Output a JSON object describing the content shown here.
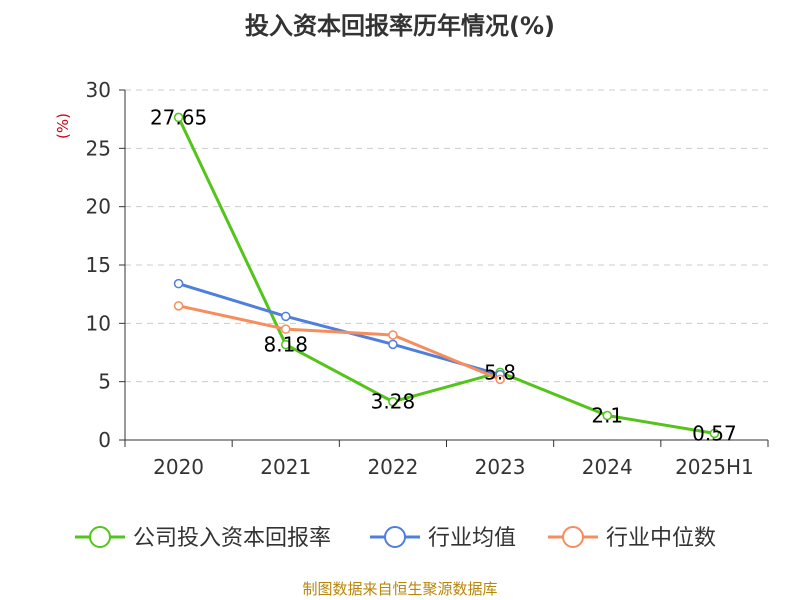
{
  "chart_data": {
    "type": "line",
    "title": "投入资本回报率历年情况(%)",
    "ylabel": "(%)",
    "categories": [
      "2020",
      "2021",
      "2022",
      "2023",
      "2024",
      "2025H1"
    ],
    "yticks": [
      "0",
      "5",
      "10",
      "15",
      "20",
      "25",
      "30"
    ],
    "ylim": [
      0,
      30
    ],
    "grid": true,
    "legend_position": "bottom",
    "series": [
      {
        "name": "公司投入资本回报率",
        "color": "#52c41a",
        "values": [
          27.65,
          8.18,
          3.28,
          5.8,
          2.1,
          0.57
        ],
        "labels": [
          "27.65",
          "8.18",
          "3.28",
          "5.8",
          "2.1",
          "0.57"
        ]
      },
      {
        "name": "行业均值",
        "color": "#4e7fdc",
        "values": [
          13.4,
          10.6,
          8.2,
          5.6,
          null,
          null
        ]
      },
      {
        "name": "行业中位数",
        "color": "#f78d5c",
        "values": [
          11.5,
          9.5,
          9.0,
          5.2,
          null,
          null
        ]
      }
    ]
  },
  "source": "制图数据来自恒生聚源数据库"
}
